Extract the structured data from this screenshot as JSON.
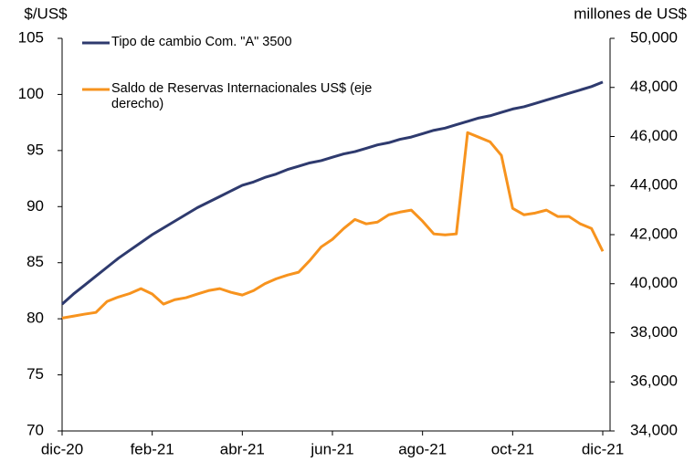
{
  "chart_data": {
    "type": "line",
    "y_label": "$/US$",
    "y2_label": "millones de US$",
    "categories": [
      "dic-20",
      null,
      null,
      null,
      null,
      null,
      null,
      null,
      "feb-21",
      null,
      null,
      null,
      null,
      null,
      null,
      null,
      "abr-21",
      null,
      null,
      null,
      null,
      null,
      null,
      null,
      "jun-21",
      null,
      null,
      null,
      null,
      null,
      null,
      null,
      "ago-21",
      null,
      null,
      null,
      null,
      null,
      null,
      null,
      "oct-21",
      null,
      null,
      null,
      null,
      null,
      null,
      null,
      "dic-21"
    ],
    "series": [
      {
        "name": "Tipo de cambio Com. \"A\" 3500",
        "color": "#2e3a6e",
        "axis": "y",
        "values": [
          81.3,
          82.2,
          83.0,
          83.8,
          84.6,
          85.4,
          86.1,
          86.8,
          87.5,
          88.1,
          88.7,
          89.3,
          89.9,
          90.4,
          90.9,
          91.4,
          91.9,
          92.2,
          92.6,
          92.9,
          93.3,
          93.6,
          93.9,
          94.1,
          94.4,
          94.7,
          94.9,
          95.2,
          95.5,
          95.7,
          96.0,
          96.2,
          96.5,
          96.8,
          97.0,
          97.3,
          97.6,
          97.9,
          98.1,
          98.4,
          98.7,
          98.9,
          99.2,
          99.5,
          99.8,
          100.1,
          100.4,
          100.7,
          101.1
        ]
      },
      {
        "name": "Saldo de Reservas Internacionales US$ (eje derecho)",
        "color": "#f7931e",
        "axis": "y2",
        "values": [
          38600,
          38680,
          38760,
          38830,
          39280,
          39460,
          39600,
          39800,
          39580,
          39170,
          39350,
          39430,
          39580,
          39720,
          39800,
          39650,
          39540,
          39720,
          40000,
          40200,
          40350,
          40470,
          40950,
          41500,
          41810,
          42250,
          42620,
          42440,
          42510,
          42810,
          42920,
          43000,
          42550,
          42030,
          41990,
          42030,
          46160,
          45970,
          45780,
          45230,
          43070,
          42810,
          42880,
          43000,
          42740,
          42740,
          42440,
          42250,
          41320
        ]
      }
    ],
    "ylim": [
      70,
      105
    ],
    "yticks": [
      70,
      75,
      80,
      85,
      90,
      95,
      100,
      105
    ],
    "y2lim": [
      34000,
      50000
    ],
    "y2ticks": [
      {
        "value": 34000,
        "label": "34,000"
      },
      {
        "value": 36000,
        "label": "36,000"
      },
      {
        "value": 38000,
        "label": "38,000"
      },
      {
        "value": 40000,
        "label": "40,000"
      },
      {
        "value": 42000,
        "label": "42,000"
      },
      {
        "value": 44000,
        "label": "44,000"
      },
      {
        "value": 46000,
        "label": "46,000"
      },
      {
        "value": 48000,
        "label": "48,000"
      },
      {
        "value": 50000,
        "label": "50,000"
      }
    ],
    "legend": "upper left"
  }
}
